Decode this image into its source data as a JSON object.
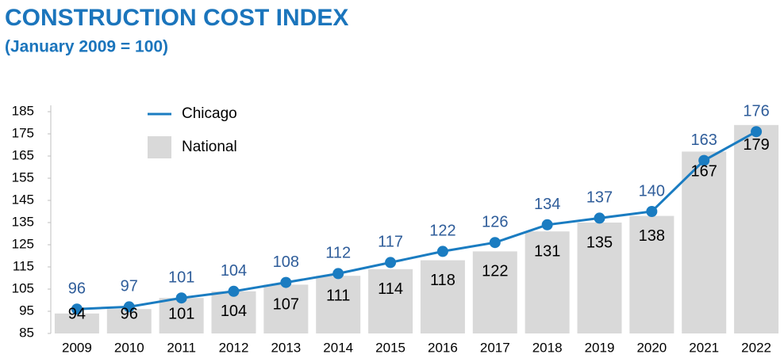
{
  "chart_data": {
    "type": "combo",
    "title": "CONSTRUCTION COST INDEX",
    "subtitle": "(January 2009 = 100)",
    "categories": [
      "2009",
      "2010",
      "2011",
      "2012",
      "2013",
      "2014",
      "2015",
      "2016",
      "2017",
      "2018",
      "2019",
      "2020",
      "2021",
      "2022"
    ],
    "series": [
      {
        "name": "National",
        "type": "bar",
        "color": "#d9d9d9",
        "values": [
          94,
          96,
          101,
          104,
          107,
          111,
          114,
          118,
          122,
          131,
          135,
          138,
          167,
          179
        ]
      },
      {
        "name": "Chicago",
        "type": "line",
        "color": "#1a7cc1",
        "values": [
          96,
          97,
          101,
          104,
          108,
          112,
          117,
          122,
          126,
          134,
          137,
          140,
          163,
          176
        ]
      }
    ],
    "ylim": [
      85,
      185
    ],
    "yticks": [
      85,
      95,
      105,
      115,
      125,
      135,
      145,
      155,
      165,
      175,
      185
    ],
    "legend": "upper left"
  }
}
